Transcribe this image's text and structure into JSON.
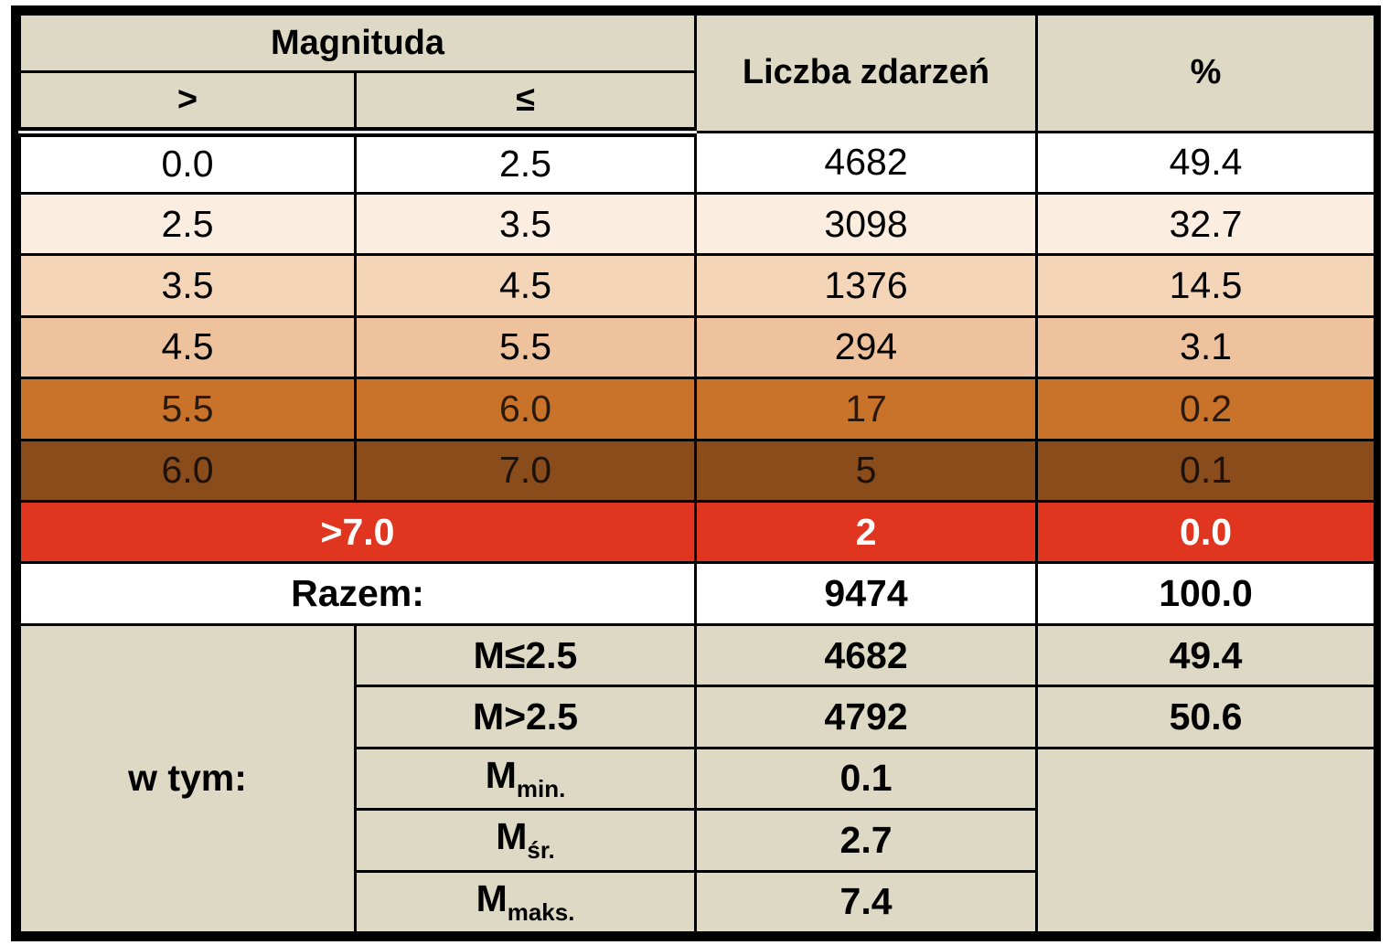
{
  "header": {
    "magnitude": "Magnituda",
    "gt": ">",
    "le": "≤",
    "count": "Liczba zdarzeń",
    "percent": "%"
  },
  "table": {
    "rows": [
      [
        "0.0",
        "2.5",
        "4682",
        "49.4"
      ],
      [
        "2.5",
        "3.5",
        "3098",
        "32.7"
      ],
      [
        "3.5",
        "4.5",
        "1376",
        "14.5"
      ],
      [
        "4.5",
        "5.5",
        "294",
        "3.1"
      ],
      [
        "5.5",
        "6.0",
        "17",
        "0.2"
      ],
      [
        "6.0",
        "7.0",
        "5",
        "0.1"
      ]
    ]
  },
  "exceed": {
    "label": ">7.0",
    "count": "2",
    "percent": "0.0"
  },
  "total": {
    "label": "Razem:",
    "count": "9474",
    "percent": "100.0"
  },
  "breakdown": {
    "label": "w tym:",
    "shares": [
      {
        "label": "M≤2.5",
        "count": "4682",
        "percent": "49.4"
      },
      {
        "label": "M>2.5",
        "count": "4792",
        "percent": "50.6"
      }
    ],
    "stats": [
      {
        "symbol": "M",
        "sub": "min.",
        "value": "0.1"
      },
      {
        "symbol": "M",
        "sub": "śr.",
        "value": "2.7"
      },
      {
        "symbol": "M",
        "sub": "maks.",
        "value": "7.4"
      }
    ]
  }
}
